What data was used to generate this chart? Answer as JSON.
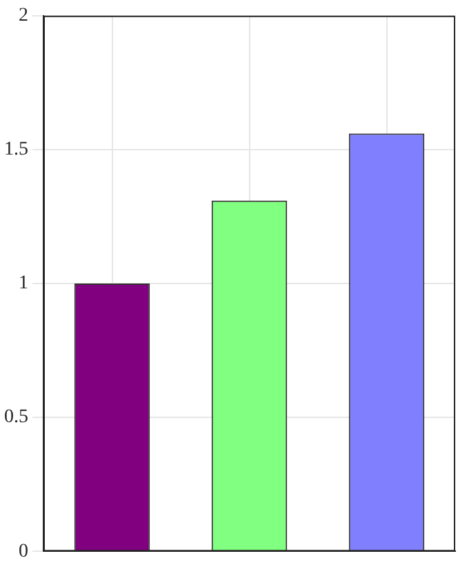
{
  "chart_data": {
    "type": "bar",
    "categories": [
      null,
      null,
      null
    ],
    "values": [
      1,
      1.31,
      1.56
    ],
    "colors": [
      "#800080",
      "#80ff80",
      "#8080ff"
    ],
    "ylim": [
      0,
      2
    ],
    "yticks": [
      0,
      0.5,
      1,
      1.5,
      2
    ],
    "grid": true,
    "tick_labels": "y"
  }
}
